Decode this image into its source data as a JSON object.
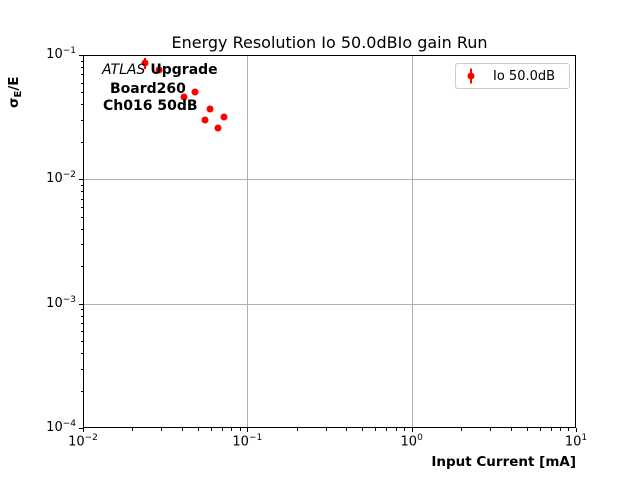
{
  "chart_data": {
    "type": "scatter",
    "title": "Energy Resolution Io 50.0dBIo gain Run",
    "xlabel": "Input Current [mA]",
    "ylabel": "σE/E",
    "ylabel_parts": {
      "sigma": "σ",
      "sub": "E",
      "rest": "/E"
    },
    "xscale": "log",
    "yscale": "log",
    "xlim": [
      0.01,
      10
    ],
    "ylim": [
      0.0001,
      0.1
    ],
    "x_tick_labels": [
      "10⁻²",
      "10⁻¹",
      "10⁰",
      "10¹"
    ],
    "y_tick_labels": [
      "10⁻¹",
      "10⁻²",
      "10⁻³",
      "10⁻⁴"
    ],
    "grid": "major decades only, light gray",
    "legend_position": "upper right",
    "series": [
      {
        "name": "Io 50.0dB",
        "color": "#ff0000",
        "marker": "circle with vertical error bars",
        "points": [
          {
            "x": 0.024,
            "y": 0.086,
            "yerr": 0.009
          },
          {
            "x": 0.029,
            "y": 0.076,
            "yerr": 0.003
          },
          {
            "x": 0.041,
            "y": 0.046,
            "yerr": 0.002
          },
          {
            "x": 0.048,
            "y": 0.05,
            "yerr": 0.002
          },
          {
            "x": 0.055,
            "y": 0.03,
            "yerr": 0.001
          },
          {
            "x": 0.059,
            "y": 0.037,
            "yerr": 0.001
          },
          {
            "x": 0.066,
            "y": 0.026,
            "yerr": 0.001
          },
          {
            "x": 0.072,
            "y": 0.032,
            "yerr": 0.001
          }
        ]
      }
    ],
    "annotations": [
      {
        "text": "ATLAS Upgrade",
        "parts": {
          "italic": "ATLAS",
          "bold": "Upgrade"
        }
      },
      {
        "text": "Board260"
      },
      {
        "text": "Ch016 50dB"
      }
    ]
  },
  "colors": {
    "marker": "#ff0000",
    "grid": "#b0b0b0",
    "legend_border": "#cccccc",
    "text": "#000000",
    "background": "#ffffff"
  }
}
